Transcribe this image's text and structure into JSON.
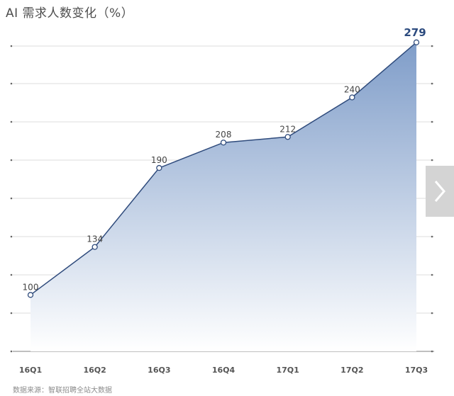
{
  "title": "AI 需求人数变化（%）",
  "source": "数据来源：智联招聘全站大数据",
  "icons": {
    "next": "chevron-right-icon"
  },
  "colors": {
    "line": "#2f4b7c",
    "fill_top": "#7f9dc9",
    "fill_bottom": "#ffffff",
    "grid": "#dddddd"
  },
  "chart_data": {
    "type": "area",
    "title": "AI 需求人数变化（%）",
    "categories": [
      "16Q1",
      "16Q2",
      "16Q3",
      "16Q4",
      "17Q1",
      "17Q2",
      "17Q3"
    ],
    "series": [
      {
        "values": [
          100,
          134,
          190,
          208,
          212,
          240,
          279
        ]
      }
    ],
    "ylim": [
      60,
      300
    ],
    "grid": true,
    "data_labels": true
  }
}
